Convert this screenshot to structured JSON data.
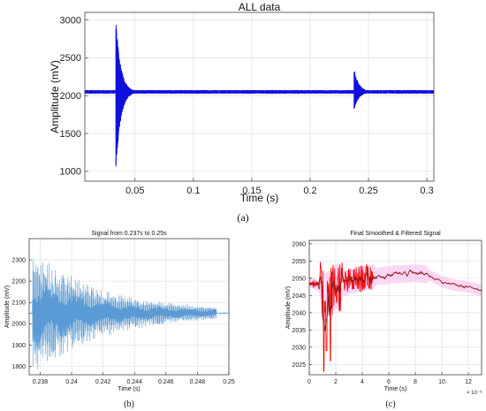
{
  "chart_data": [
    {
      "type": "line",
      "title": "ALL data",
      "xlabel": "Time (s)",
      "ylabel": "Amplitude (mV)",
      "xlim": [
        0.007,
        0.306
      ],
      "ylim": [
        870,
        3100
      ],
      "xticks": [
        0.05,
        0.1,
        0.15,
        0.2,
        0.25,
        0.3
      ],
      "xtick_labels": [
        "0.05",
        "0.1",
        "0.15",
        "0.2",
        "0.25",
        "0.3"
      ],
      "yticks": [
        1000,
        1500,
        2000,
        2500,
        3000
      ],
      "ytick_labels": [
        "1000",
        "1500",
        "2000",
        "2500",
        "3000"
      ],
      "grid": true,
      "color": "#1010dd",
      "baseline": 2050,
      "events": [
        {
          "t0": 0.0335,
          "max": 3070,
          "min": 940,
          "tau": 0.004
        },
        {
          "t0": 0.2375,
          "max": 2380,
          "min": 1790,
          "tau": 0.004
        }
      ],
      "caption": "(a)"
    },
    {
      "type": "line",
      "title": "Signal from 0.237s to 0.25s",
      "xlabel": "Time (s)",
      "ylabel": "Amplitude (mV)",
      "xlim": [
        0.2373,
        0.25
      ],
      "ylim": [
        1760,
        2400
      ],
      "xticks": [
        0.238,
        0.24,
        0.242,
        0.244,
        0.246,
        0.248,
        0.25
      ],
      "xtick_labels": [
        "0.238",
        "0.24",
        "0.242",
        "0.244",
        "0.246",
        "0.248",
        "0.25"
      ],
      "yticks": [
        1800,
        1900,
        2000,
        2100,
        2200,
        2300
      ],
      "ytick_labels": [
        "1800",
        "1900",
        "2000",
        "2100",
        "2200",
        "2300"
      ],
      "grid": true,
      "color": "#5b9bd5",
      "baseline": 2050,
      "envelope": {
        "start": 0.2375,
        "amp_max": 310,
        "amp_end": 12,
        "end": 0.2488
      },
      "caption": "(b)"
    },
    {
      "type": "line",
      "title": "Final Smoothed & Filtered Signal",
      "xlabel": "Time (s)",
      "ylabel": "Amplitude (mV)",
      "xlim": [
        0,
        0.013
      ],
      "ylim": [
        2022,
        2061
      ],
      "xticks": [
        0,
        0.002,
        0.004,
        0.006,
        0.008,
        0.01,
        0.012
      ],
      "xtick_labels": [
        "0",
        "2",
        "4",
        "6",
        "8",
        "10",
        "12"
      ],
      "yticks": [
        2025,
        2030,
        2035,
        2040,
        2045,
        2050,
        2055,
        2060
      ],
      "ytick_labels": [
        "2025",
        "2030",
        "2035",
        "2040",
        "2045",
        "2050",
        "2055",
        "2060"
      ],
      "x_multiplier": "× 10⁻³",
      "grid": true,
      "series": [
        {
          "color": "#ee0000",
          "role": "filtered"
        },
        {
          "color": "#8b1a1a",
          "role": "smoothed"
        }
      ],
      "band_color": "#f7b6f0",
      "trend": [
        [
          0,
          2049
        ],
        [
          0.0006,
          2048
        ],
        [
          0.0012,
          2045
        ],
        [
          0.002,
          2047.5
        ],
        [
          0.003,
          2049
        ],
        [
          0.004,
          2050
        ],
        [
          0.006,
          2051
        ],
        [
          0.008,
          2051.5
        ],
        [
          0.009,
          2051
        ],
        [
          0.01,
          2049
        ],
        [
          0.011,
          2048
        ],
        [
          0.012,
          2047.5
        ],
        [
          0.013,
          2046.5
        ]
      ],
      "caption": "(c)"
    }
  ]
}
